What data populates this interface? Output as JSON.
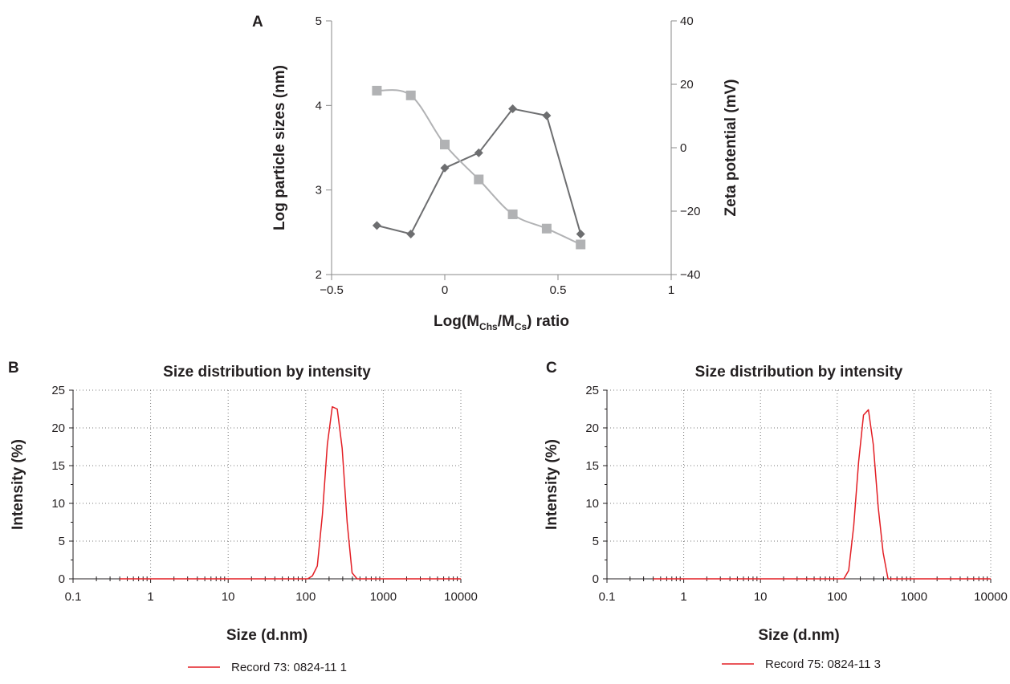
{
  "chart_data": [
    {
      "panel": "A",
      "type": "line",
      "xlabel_parts": [
        "Log(M",
        "Chs",
        "/M",
        "Cs",
        ") ratio"
      ],
      "ylabel": "Log particle sizes (nm)",
      "y2label": "Zeta potential (mV)",
      "xlim": [
        -0.5,
        1
      ],
      "ylim": [
        2,
        5
      ],
      "y2lim": [
        -40,
        40
      ],
      "x_ticks": [
        "−0.5",
        "0",
        "0.5",
        "1"
      ],
      "y_ticks": [
        "2",
        "3",
        "4",
        "5"
      ],
      "y2_ticks": [
        "−40",
        "−20",
        "0",
        "20",
        "40"
      ],
      "series": [
        {
          "marker": "diamond",
          "axis": "left",
          "color": "#6d6e70",
          "x": [
            -0.3,
            -0.15,
            0,
            0.15,
            0.3,
            0.45,
            0.6
          ],
          "y": [
            2.58,
            2.48,
            3.26,
            3.44,
            3.96,
            3.88,
            2.48
          ]
        },
        {
          "marker": "square",
          "axis": "right",
          "color": "#b1b2b4",
          "x": [
            -0.3,
            -0.15,
            0,
            0.15,
            0.3,
            0.45,
            0.6
          ],
          "y": [
            18,
            16.5,
            1,
            -10,
            -21,
            -25.5,
            -30.5
          ]
        }
      ]
    },
    {
      "panel": "B",
      "type": "line",
      "title": "Size distribution by intensity",
      "xlabel": "Size (d.nm)",
      "ylabel": "Intensity (%)",
      "x_scale": "log",
      "xlim": [
        0.1,
        10000
      ],
      "ylim": [
        0,
        25
      ],
      "x_ticks": [
        "0.1",
        "1",
        "10",
        "100",
        "1000",
        "10000"
      ],
      "y_ticks": [
        "0",
        "5",
        "10",
        "15",
        "20",
        "25"
      ],
      "grid": true,
      "legend": "Record 73: 0824-11 1",
      "series": [
        {
          "name": "Record 73: 0824-11 1",
          "color": "#e31e24",
          "x": [
            0.4,
            106,
            122,
            141,
            164,
            190,
            220,
            255,
            295,
            342,
            396,
            459,
            10000
          ],
          "y": [
            0,
            0,
            0.4,
            1.7,
            8.5,
            17.8,
            22.8,
            22.5,
            17.3,
            7.5,
            0.8,
            0,
            0
          ]
        }
      ]
    },
    {
      "panel": "C",
      "type": "line",
      "title": "Size distribution by intensity",
      "xlabel": "Size (d.nm)",
      "ylabel": "Intensity (%)",
      "x_scale": "log",
      "xlim": [
        0.1,
        10000
      ],
      "ylim": [
        0,
        25
      ],
      "x_ticks": [
        "0.1",
        "1",
        "10",
        "100",
        "1000",
        "10000"
      ],
      "y_ticks": [
        "0",
        "5",
        "10",
        "15",
        "20",
        "25"
      ],
      "grid": true,
      "legend": "Record 75: 0824-11 3",
      "series": [
        {
          "name": "Record 75: 0824-11 3",
          "color": "#e31e24",
          "x": [
            0.4,
            122,
            141,
            164,
            190,
            220,
            255,
            295,
            342,
            396,
            459,
            10000
          ],
          "y": [
            0,
            0,
            1.1,
            7,
            15.5,
            21.7,
            22.4,
            17.8,
            9.5,
            3.5,
            0,
            0
          ]
        }
      ]
    }
  ]
}
